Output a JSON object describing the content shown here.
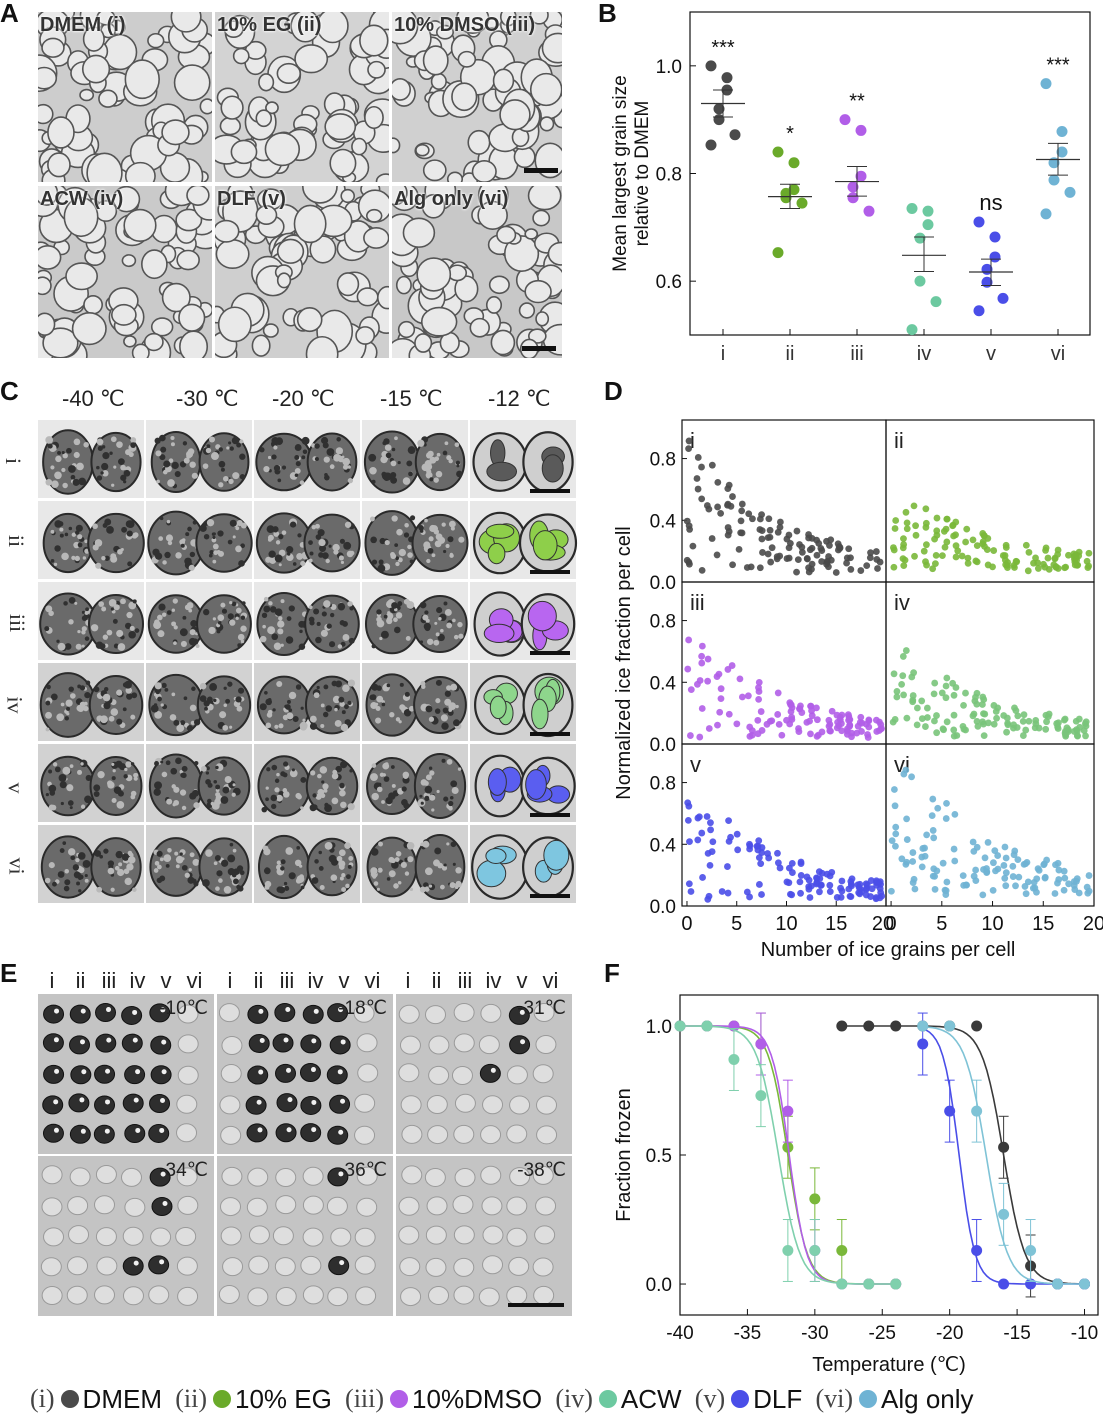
{
  "panels": {
    "a": "A",
    "b": "B",
    "c": "C",
    "d": "D",
    "e": "E",
    "f": "F"
  },
  "panelA": {
    "captions": [
      "DMEM (i)",
      "10% EG (ii)",
      "10% DMSO (iii)",
      "ACW (iv)",
      "DLF (v)",
      "Alg only (vi)"
    ]
  },
  "panelC": {
    "temps": [
      "-40 ℃",
      "-30 ℃",
      "-20 ℃",
      "-15 ℃",
      "-12 ℃"
    ],
    "rows": [
      "i",
      "ii",
      "iii",
      "iv",
      "v",
      "vi"
    ]
  },
  "panelE": {
    "group_labels": [
      "i",
      "ii",
      "iii",
      "iv",
      "v",
      "vi"
    ],
    "temps": [
      "-10℃",
      "-18℃",
      "-31℃",
      "-34℃",
      "-36℃",
      "-38℃"
    ]
  },
  "legend": [
    {
      "roman": "(i)",
      "name": "DMEM",
      "color": "#4a4a4a"
    },
    {
      "roman": "(ii)",
      "name": "10% EG",
      "color": "#6aaa2a"
    },
    {
      "roman": "(iii)",
      "name": "10%DMSO",
      "color": "#b15ee8"
    },
    {
      "roman": "(iv)",
      "name": "ACW",
      "color": "#6cc9a0"
    },
    {
      "roman": "(v)",
      "name": "DLF",
      "color": "#4a4ee8"
    },
    {
      "roman": "(vi)",
      "name": "Alg only",
      "color": "#6fb3d4"
    }
  ],
  "chart_data": [
    {
      "panel": "B",
      "type": "scatter",
      "ylabel": "Mean largest grain size relative to DMEM",
      "categories": [
        "i",
        "ii",
        "iii",
        "iv",
        "v",
        "vi"
      ],
      "yticks": [
        0.6,
        0.8,
        1.0
      ],
      "ylim": [
        0.5,
        1.1
      ],
      "significance": [
        "***",
        "*",
        "**",
        "",
        "ns",
        "***"
      ],
      "means": [
        0.93,
        0.757,
        0.785,
        0.648,
        0.617,
        0.826
      ],
      "sem_low": [
        0.905,
        0.735,
        0.758,
        0.618,
        0.592,
        0.797
      ],
      "sem_high": [
        0.955,
        0.78,
        0.813,
        0.682,
        0.641,
        0.856
      ],
      "points": [
        [
          1.0,
          0.978,
          0.955,
          0.92,
          0.9,
          0.872,
          0.853
        ],
        [
          0.84,
          0.82,
          0.77,
          0.763,
          0.755,
          0.745,
          0.653
        ],
        [
          0.9,
          0.88,
          0.795,
          0.775,
          0.755,
          0.73
        ],
        [
          0.735,
          0.73,
          0.705,
          0.68,
          0.6,
          0.562,
          0.51
        ],
        [
          0.71,
          0.682,
          0.645,
          0.622,
          0.598,
          0.568,
          0.545
        ],
        [
          0.967,
          0.878,
          0.84,
          0.82,
          0.788,
          0.765,
          0.725
        ]
      ],
      "colors": [
        "#4a4a4a",
        "#6aaa2a",
        "#b15ee8",
        "#6cc9a0",
        "#4a4ee8",
        "#6fb3d4"
      ]
    },
    {
      "panel": "D",
      "type": "scatter",
      "ylabel": "Normalized ice fraction per cell",
      "xlabel": "Number of ice grains per cell",
      "xticks": [
        0,
        5,
        10,
        15,
        20
      ],
      "yticks": [
        0.0,
        0.4,
        0.8
      ],
      "xlim": [
        -0.5,
        20
      ],
      "ylim": [
        0,
        1.05
      ],
      "subplots": [
        "i",
        "ii",
        "iii",
        "iv",
        "v",
        "vi"
      ],
      "colors": [
        "#4a4a4a",
        "#7ab83a",
        "#b15ee8",
        "#79c47a",
        "#4a4ee8",
        "#6fb3d4"
      ],
      "trend_top": [
        0.85,
        0.55,
        0.72,
        0.62,
        0.78,
        0.95
      ],
      "trend_base": [
        0.1,
        0.12,
        0.07,
        0.08,
        0.07,
        0.12
      ]
    },
    {
      "panel": "F",
      "type": "line",
      "xlabel": "Temperature (℃)",
      "ylabel": "Fraction frozen",
      "xticks": [
        -40,
        -35,
        -30,
        -25,
        -20,
        -15,
        -10
      ],
      "yticks": [
        0.0,
        0.5,
        1.0
      ],
      "xlim": [
        -40,
        -9
      ],
      "ylim": [
        -0.12,
        1.12
      ],
      "series": [
        {
          "name": "DMEM",
          "color": "#3a3a3a",
          "x": [
            -28,
            -26,
            -24,
            -22,
            -20,
            -18,
            -16,
            -14,
            -12,
            -10
          ],
          "y": [
            1,
            1,
            1,
            1,
            1,
            1,
            0.53,
            0.07,
            0,
            0
          ],
          "fit_mid": -16.0,
          "fit_k": 0.9
        },
        {
          "name": "10% EG",
          "color": "#7ab83a",
          "x": [
            -40,
            -38,
            -36,
            -34,
            -32,
            -30,
            -28,
            -26,
            -24
          ],
          "y": [
            1,
            1,
            1,
            0.93,
            0.53,
            0.33,
            0.13,
            0,
            0
          ],
          "fit_mid": -32.0,
          "fit_k": 1.0
        },
        {
          "name": "10%DMSO",
          "color": "#b15ee8",
          "x": [
            -40,
            -38,
            -36,
            -34,
            -32,
            -30,
            -28,
            -26,
            -24
          ],
          "y": [
            1,
            1,
            1,
            0.93,
            0.67,
            0.13,
            0,
            0,
            0
          ],
          "fit_mid": -31.9,
          "fit_k": 1.1
        },
        {
          "name": "ACW",
          "color": "#7fd0ad",
          "x": [
            -40,
            -38,
            -36,
            -34,
            -32,
            -30,
            -28,
            -26,
            -24
          ],
          "y": [
            1,
            1,
            0.87,
            0.73,
            0.13,
            0.13,
            0,
            0,
            0
          ],
          "fit_mid": -32.7,
          "fit_k": 0.9
        },
        {
          "name": "DLF",
          "color": "#4a4ee8",
          "x": [
            -22,
            -20,
            -18,
            -16,
            -14,
            -12,
            -10
          ],
          "y": [
            0.93,
            0.67,
            0.13,
            0,
            0,
            0,
            0
          ],
          "fit_mid": -19.3,
          "fit_k": 1.2
        },
        {
          "name": "Alg only",
          "color": "#7fc3d6",
          "x": [
            -22,
            -20,
            -18,
            -16,
            -14,
            -12,
            -10
          ],
          "y": [
            1,
            1,
            0.67,
            0.27,
            0.13,
            0,
            0
          ],
          "fit_mid": -17.3,
          "fit_k": 0.9
        }
      ]
    }
  ]
}
